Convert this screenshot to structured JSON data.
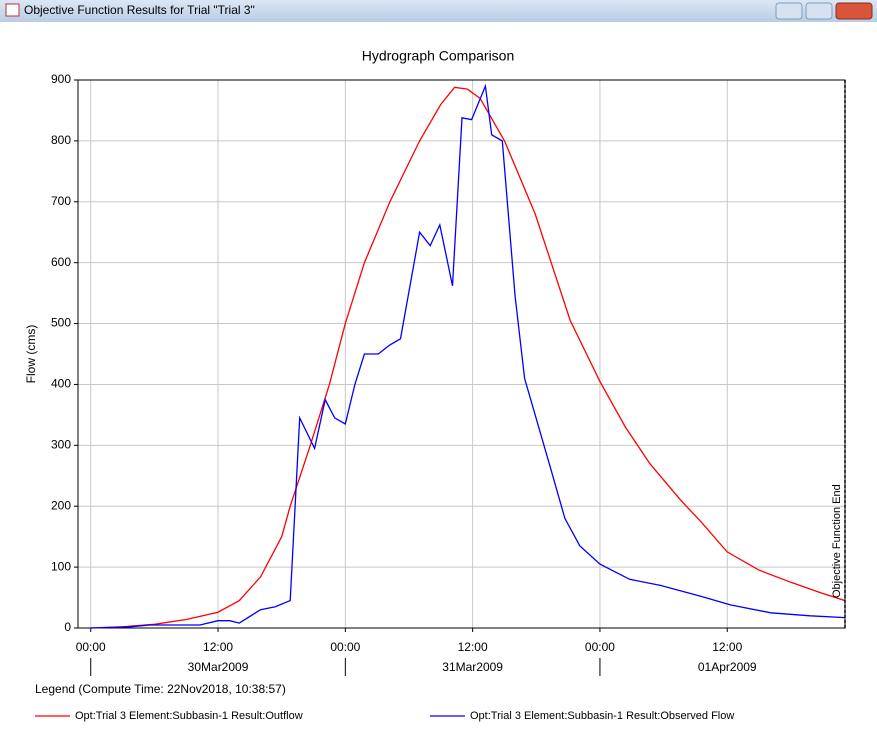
{
  "window_title": "Objective Function Results for Trial \"Trial 3\"",
  "chart_data": {
    "type": "line",
    "title": "Hydrograph Comparison",
    "y_label": "Flow (cms)",
    "xlim": [
      -1.2,
      71.1
    ],
    "ylim": [
      0,
      900
    ],
    "xticks": [
      {
        "value": 0,
        "label": "00:00"
      },
      {
        "value": 12,
        "label": "12:00"
      },
      {
        "value": 24,
        "label": "00:00"
      },
      {
        "value": 36,
        "label": "12:00"
      },
      {
        "value": 48,
        "label": "00:00"
      },
      {
        "value": 60,
        "label": "12:00"
      }
    ],
    "date_ticks": [
      {
        "value": 12,
        "label": "30Mar2009"
      },
      {
        "value": 36,
        "label": "31Mar2009"
      },
      {
        "value": 60,
        "label": "01Apr2009"
      }
    ],
    "day_boundaries": [
      0,
      24,
      48
    ],
    "yticks": [
      0,
      100,
      200,
      300,
      400,
      500,
      600,
      700,
      800,
      900
    ],
    "grid": true,
    "annotation": {
      "text": "Objective Function End",
      "x": 71.1
    },
    "legend_title": "Legend (Compute Time: 22Nov2018, 10:38:57)",
    "series": [
      {
        "name": "Opt:Trial 3 Element:Subbasin-1 Result:Outflow",
        "color": "#ff0000",
        "x": [
          0,
          3,
          6,
          9,
          12,
          14,
          16,
          18,
          18.8,
          20.7,
          22.5,
          24,
          25.8,
          28.2,
          31,
          33,
          34.3,
          35.5,
          36.7,
          39,
          41.9,
          45.2,
          48,
          50.4,
          52.7,
          55.6,
          57.5,
          60,
          63,
          66,
          68.8,
          71.1
        ],
        "values": [
          0,
          2,
          6,
          14,
          26,
          45,
          84,
          150,
          200,
          300,
          400,
          500,
          600,
          700,
          800,
          860,
          888,
          885,
          870,
          800,
          680,
          505,
          405,
          330,
          270,
          210,
          175,
          125,
          95,
          75,
          58,
          45
        ]
      },
      {
        "name": "Opt:Trial 3 Element:Subbasin-1 Result:Observed Flow",
        "color": "#0000ff",
        "x": [
          0,
          3.7,
          5.6,
          8.4,
          10.3,
          12,
          13.1,
          14,
          16,
          17.4,
          18.8,
          19.7,
          21.1,
          22.1,
          23,
          24,
          24.9,
          25.8,
          27.1,
          28.2,
          29.2,
          31,
          32,
          32.9,
          34.1,
          35,
          35.9,
          37.2,
          37.8,
          38.8,
          40,
          40.9,
          43.3,
          44.7,
          46.1,
          48,
          50.8,
          53.7,
          57.5,
          60.3,
          64.1,
          67.8,
          71.1
        ],
        "values": [
          0,
          2,
          5,
          5,
          5,
          12,
          12,
          8,
          30,
          35,
          45,
          345,
          295,
          375,
          345,
          335,
          400,
          450,
          450,
          465,
          475,
          650,
          628,
          662,
          562,
          838,
          835,
          890,
          810,
          800,
          545,
          410,
          265,
          180,
          135,
          105,
          80,
          70,
          52,
          38,
          25,
          20,
          17
        ]
      }
    ]
  }
}
